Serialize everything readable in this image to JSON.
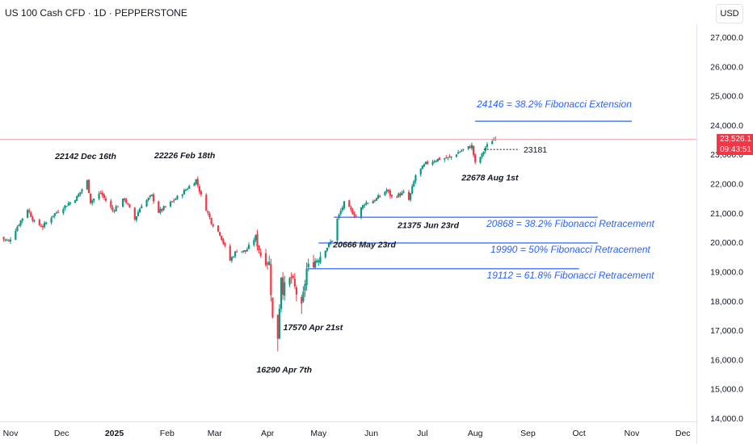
{
  "header": {
    "title": "US 100 Cash CFD · 1D · PEPPERSTONE",
    "currency_button": "USD"
  },
  "price_axis": {
    "last_price": "23,526.1",
    "countdown": "09:43:51"
  },
  "colors": {
    "up": "#089981",
    "down": "#f23645",
    "fib_line": "#2962ff",
    "fib_text": "#2962ff",
    "last_price_line": "#f7a8ae"
  },
  "chart_data": {
    "type": "candlestick",
    "ylim": [
      14000,
      27500
    ],
    "y_ticks": [
      14000,
      15000,
      16000,
      17000,
      18000,
      19000,
      20000,
      21000,
      22000,
      23000,
      24000,
      25000,
      26000,
      27000
    ],
    "y_tick_labels": [
      "14,000.0",
      "15,000.0",
      "16,000.0",
      "17,000.0",
      "18,000.0",
      "19,000.0",
      "20,000.0",
      "21,000.0",
      "22,000.0",
      "23,000.0",
      "24,000.0",
      "25,000.0",
      "26,000.0",
      "27,000.0"
    ],
    "x_range": [
      "2024-10-25",
      "2025-12-31"
    ],
    "x_ticks": [
      {
        "date": "2024-11-01",
        "label": "Nov",
        "bold": false
      },
      {
        "date": "2024-12-01",
        "label": "Dec",
        "bold": false
      },
      {
        "date": "2025-01-01",
        "label": "2025",
        "bold": true
      },
      {
        "date": "2025-02-01",
        "label": "Feb",
        "bold": false
      },
      {
        "date": "2025-03-01",
        "label": "Mar",
        "bold": false
      },
      {
        "date": "2025-04-01",
        "label": "Apr",
        "bold": false
      },
      {
        "date": "2025-05-01",
        "label": "May",
        "bold": false
      },
      {
        "date": "2025-06-01",
        "label": "Jun",
        "bold": false
      },
      {
        "date": "2025-07-01",
        "label": "Jul",
        "bold": false
      },
      {
        "date": "2025-08-01",
        "label": "Aug",
        "bold": false
      },
      {
        "date": "2025-09-01",
        "label": "Sep",
        "bold": false
      },
      {
        "date": "2025-10-01",
        "label": "Oct",
        "bold": false
      },
      {
        "date": "2025-11-01",
        "label": "Nov",
        "bold": false
      },
      {
        "date": "2025-12-01",
        "label": "Dec",
        "bold": false
      }
    ],
    "last_price_value": 23526.1,
    "close_path": [
      [
        "2024-10-25",
        20200
      ],
      [
        "2024-10-31",
        20050
      ],
      [
        "2024-11-06",
        20650
      ],
      [
        "2024-11-11",
        21150
      ],
      [
        "2024-11-15",
        20700
      ],
      [
        "2024-11-20",
        20550
      ],
      [
        "2024-11-26",
        20950
      ],
      [
        "2024-12-03",
        21250
      ],
      [
        "2024-12-10",
        21550
      ],
      [
        "2024-12-16",
        22100
      ],
      [
        "2024-12-18",
        21400
      ],
      [
        "2024-12-24",
        21700
      ],
      [
        "2024-12-31",
        21100
      ],
      [
        "2025-01-07",
        21500
      ],
      [
        "2025-01-13",
        20800
      ],
      [
        "2025-01-17",
        21300
      ],
      [
        "2025-01-23",
        21600
      ],
      [
        "2025-01-27",
        21050
      ],
      [
        "2025-02-03",
        21350
      ],
      [
        "2025-02-10",
        21700
      ],
      [
        "2025-02-18",
        22150
      ],
      [
        "2025-02-21",
        21600
      ],
      [
        "2025-02-27",
        20700
      ],
      [
        "2025-03-04",
        20300
      ],
      [
        "2025-03-10",
        19400
      ],
      [
        "2025-03-14",
        19750
      ],
      [
        "2025-03-19",
        19700
      ],
      [
        "2025-03-25",
        20200
      ],
      [
        "2025-03-28",
        19600
      ],
      [
        "2025-04-02",
        19300
      ],
      [
        "2025-04-04",
        17400
      ],
      [
        "2025-04-07",
        16800
      ],
      [
        "2025-04-09",
        18900
      ],
      [
        "2025-04-10",
        18400
      ],
      [
        "2025-04-15",
        18800
      ],
      [
        "2025-04-21",
        17750
      ],
      [
        "2025-04-24",
        19100
      ],
      [
        "2025-04-30",
        19450
      ],
      [
        "2025-05-06",
        19850
      ],
      [
        "2025-05-09",
        20100
      ],
      [
        "2025-05-12",
        20800
      ],
      [
        "2025-05-16",
        21350
      ],
      [
        "2025-05-23",
        20900
      ],
      [
        "2025-05-28",
        21350
      ],
      [
        "2025-06-03",
        21450
      ],
      [
        "2025-06-10",
        21800
      ],
      [
        "2025-06-13",
        21550
      ],
      [
        "2025-06-20",
        21700
      ],
      [
        "2025-06-23",
        21450
      ],
      [
        "2025-06-27",
        22300
      ],
      [
        "2025-07-03",
        22700
      ],
      [
        "2025-07-10",
        22850
      ],
      [
        "2025-07-17",
        22900
      ],
      [
        "2025-07-24",
        23150
      ],
      [
        "2025-07-30",
        23300
      ],
      [
        "2025-08-01",
        22700
      ],
      [
        "2025-08-05",
        23000
      ],
      [
        "2025-08-07",
        23250
      ],
      [
        "2025-08-11",
        23500
      ],
      [
        "2025-08-13",
        23600
      ]
    ],
    "annotations": [
      {
        "label": "22142 Dec 16th",
        "date": "2024-12-18",
        "value": 22142
      },
      {
        "label": "22226 Feb 18th",
        "date": "2025-02-18",
        "value": 22226
      },
      {
        "label": "16290 Apr 7th",
        "date": "2025-04-07",
        "value": 16290
      },
      {
        "label": "17570 Apr 21st",
        "date": "2025-04-22",
        "value": 17570
      },
      {
        "label": "20666 May 23rd",
        "date": "2025-05-27",
        "value": 20666
      },
      {
        "label": "21375 Jun 23rd",
        "date": "2025-06-24",
        "value": 21375
      },
      {
        "label": "22678 Aug 1st",
        "date": "2025-08-03",
        "value": 22678
      }
    ],
    "fib_levels": [
      {
        "label": "24146 = 38.2% Fibonacci Extension",
        "value": 24146,
        "from": "2025-08-01",
        "to": "2025-11-01"
      },
      {
        "label": "20868 = 38.2% Fibonacci Retracement",
        "value": 20868,
        "from": "2025-05-10",
        "to": "2025-10-12"
      },
      {
        "label": "19990 = 50% Fibonacci Retracement",
        "value": 19990,
        "from": "2025-05-01",
        "to": "2025-10-12"
      },
      {
        "label": "19112 = 61.8% Fibonacci Retracement",
        "value": 19112,
        "from": "2025-04-25",
        "to": "2025-10-01"
      }
    ],
    "dashed_level": {
      "label": "23181",
      "value": 23181,
      "from": "2025-08-06",
      "to": "2025-08-27"
    }
  }
}
